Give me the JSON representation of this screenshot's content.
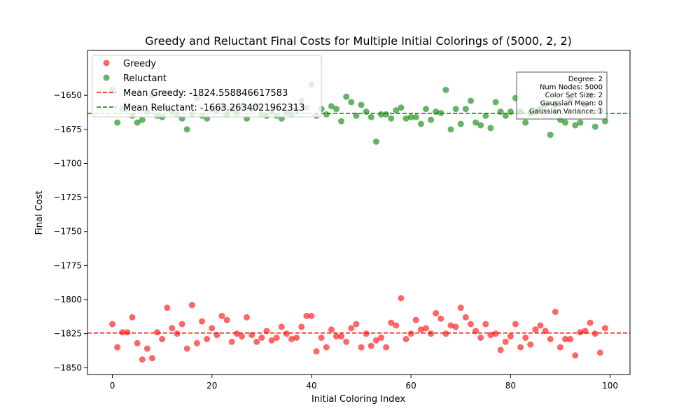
{
  "chart_data": {
    "type": "scatter",
    "title": "Greedy and Reluctant Final Costs for Multiple Initial Colorings of (5000, 2, 2)",
    "xlabel": "Initial Coloring Index",
    "ylabel": "Final Cost",
    "xlim": [
      -5,
      104
    ],
    "ylim": [
      -1855,
      -1617
    ],
    "x_ticks": [
      0,
      20,
      40,
      60,
      80,
      100
    ],
    "y_ticks": [
      -1850,
      -1825,
      -1800,
      -1775,
      -1750,
      -1725,
      -1700,
      -1675,
      -1650
    ],
    "x_tick_labels": [
      "0",
      "20",
      "40",
      "60",
      "80",
      "100"
    ],
    "y_tick_labels": [
      "−1850",
      "−1825",
      "−1800",
      "−1775",
      "−1750",
      "−1725",
      "−1700",
      "−1675",
      "−1650"
    ],
    "grid": false,
    "legend_position": "top-left",
    "series": [
      {
        "name": "Greedy",
        "color": "#ff0000",
        "x": [
          0,
          1,
          2,
          3,
          4,
          5,
          6,
          7,
          8,
          9,
          10,
          11,
          12,
          13,
          14,
          15,
          16,
          17,
          18,
          19,
          20,
          21,
          22,
          23,
          24,
          25,
          26,
          27,
          28,
          29,
          30,
          31,
          32,
          33,
          34,
          35,
          36,
          37,
          38,
          39,
          40,
          41,
          42,
          43,
          44,
          45,
          46,
          47,
          48,
          49,
          50,
          51,
          52,
          53,
          54,
          55,
          56,
          57,
          58,
          59,
          60,
          61,
          62,
          63,
          64,
          65,
          66,
          67,
          68,
          69,
          70,
          71,
          72,
          73,
          74,
          75,
          76,
          77,
          78,
          79,
          80,
          81,
          82,
          83,
          84,
          85,
          86,
          87,
          88,
          89,
          90,
          91,
          92,
          93,
          94,
          95,
          96,
          97,
          98,
          99
        ],
        "y": [
          -1818,
          -1835,
          -1824,
          -1824,
          -1813,
          -1832,
          -1844,
          -1836,
          -1843,
          -1824,
          -1829,
          -1806,
          -1821,
          -1825,
          -1818,
          -1836,
          -1804,
          -1832,
          -1816,
          -1829,
          -1821,
          -1826,
          -1812,
          -1815,
          -1831,
          -1825,
          -1827,
          -1813,
          -1826,
          -1831,
          -1828,
          -1823,
          -1830,
          -1828,
          -1820,
          -1825,
          -1829,
          -1828,
          -1820,
          -1812,
          -1812,
          -1838,
          -1828,
          -1835,
          -1822,
          -1827,
          -1827,
          -1831,
          -1821,
          -1818,
          -1835,
          -1825,
          -1834,
          -1830,
          -1828,
          -1835,
          -1817,
          -1819,
          -1799,
          -1829,
          -1825,
          -1815,
          -1822,
          -1821,
          -1825,
          -1810,
          -1814,
          -1825,
          -1819,
          -1820,
          -1806,
          -1813,
          -1818,
          -1823,
          -1828,
          -1818,
          -1826,
          -1825,
          -1837,
          -1831,
          -1827,
          -1818,
          -1835,
          -1828,
          -1833,
          -1822,
          -1819,
          -1823,
          -1829,
          -1809,
          -1835,
          -1829,
          -1829,
          -1841,
          -1824,
          -1823,
          -1817,
          -1825,
          -1839,
          -1821
        ]
      },
      {
        "name": "Reluctant",
        "color": "#008000",
        "x": [
          0,
          1,
          2,
          3,
          4,
          5,
          6,
          7,
          8,
          9,
          10,
          11,
          12,
          13,
          14,
          15,
          16,
          17,
          18,
          19,
          20,
          21,
          22,
          23,
          24,
          25,
          26,
          27,
          28,
          29,
          30,
          31,
          32,
          33,
          34,
          35,
          36,
          37,
          38,
          39,
          40,
          41,
          42,
          43,
          44,
          45,
          46,
          47,
          48,
          49,
          50,
          51,
          52,
          53,
          54,
          55,
          56,
          57,
          58,
          59,
          60,
          61,
          62,
          63,
          64,
          65,
          66,
          67,
          68,
          69,
          70,
          71,
          72,
          73,
          74,
          75,
          76,
          77,
          78,
          79,
          80,
          81,
          82,
          83,
          84,
          85,
          86,
          87,
          88,
          89,
          90,
          91,
          92,
          93,
          94,
          95,
          96,
          97,
          98,
          99
        ],
        "y": [
          -1646,
          -1670,
          -1660,
          -1660,
          -1665,
          -1670,
          -1668,
          -1662,
          -1650,
          -1665,
          -1666,
          -1660,
          -1662,
          -1664,
          -1667,
          -1675,
          -1664,
          -1652,
          -1665,
          -1667,
          -1660,
          -1661,
          -1658,
          -1664,
          -1660,
          -1663,
          -1658,
          -1667,
          -1660,
          -1658,
          -1664,
          -1665,
          -1662,
          -1665,
          -1667,
          -1663,
          -1664,
          -1661,
          -1654,
          -1659,
          -1642,
          -1665,
          -1660,
          -1664,
          -1658,
          -1660,
          -1669,
          -1651,
          -1655,
          -1665,
          -1657,
          -1662,
          -1666,
          -1684,
          -1664,
          -1664,
          -1667,
          -1661,
          -1659,
          -1667,
          -1666,
          -1666,
          -1671,
          -1660,
          -1668,
          -1662,
          -1663,
          -1646,
          -1675,
          -1660,
          -1671,
          -1660,
          -1654,
          -1670,
          -1672,
          -1665,
          -1674,
          -1655,
          -1662,
          -1665,
          -1662,
          -1652,
          -1662,
          -1670,
          -1663,
          -1662,
          -1660,
          -1657,
          -1679,
          -1657,
          -1668,
          -1670,
          -1653,
          -1672,
          -1670,
          -1657,
          -1650,
          -1673,
          -1661,
          -1669
        ]
      }
    ],
    "hlines": [
      {
        "name": "Mean Greedy: -1824.558846617583",
        "y": -1824.558846617583,
        "color": "#ff0000",
        "style": "dashed"
      },
      {
        "name": "Mean Reluctant: -1663.2634021962313",
        "y": -1663.2634021962313,
        "color": "#008000",
        "style": "dashed"
      }
    ],
    "annotation_lines": [
      "Degree: 2",
      "Num Nodes: 5000",
      "Color Set Size: 2",
      "Gaussian Mean: 0",
      "Gaussian Variance: 1"
    ]
  }
}
